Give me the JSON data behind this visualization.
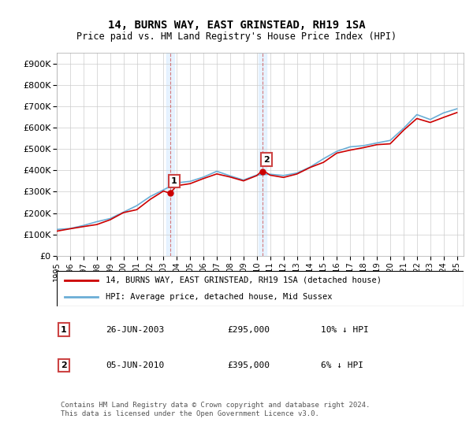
{
  "title": "14, BURNS WAY, EAST GRINSTEAD, RH19 1SA",
  "subtitle": "Price paid vs. HM Land Registry's House Price Index (HPI)",
  "legend_line1": "14, BURNS WAY, EAST GRINSTEAD, RH19 1SA (detached house)",
  "legend_line2": "HPI: Average price, detached house, Mid Sussex",
  "annotation1_label": "1",
  "annotation1_date": "26-JUN-2003",
  "annotation1_price": "£295,000",
  "annotation1_hpi": "10% ↓ HPI",
  "annotation2_label": "2",
  "annotation2_date": "05-JUN-2010",
  "annotation2_price": "£395,000",
  "annotation2_hpi": "6% ↓ HPI",
  "footnote": "Contains HM Land Registry data © Crown copyright and database right 2024.\nThis data is licensed under the Open Government Licence v3.0.",
  "sale1_year": 2003.49,
  "sale1_price": 295000,
  "sale2_year": 2010.43,
  "sale2_price": 395000,
  "hpi_color": "#6baed6",
  "price_color": "#cc0000",
  "shade_color": "#ddeeff",
  "ylim_min": 0,
  "ylim_max": 950000,
  "yticks": [
    0,
    100000,
    200000,
    300000,
    400000,
    500000,
    600000,
    700000,
    800000,
    900000
  ],
  "ytick_labels": [
    "£0",
    "£100K",
    "£200K",
    "£300K",
    "£400K",
    "£500K",
    "£600K",
    "£700K",
    "£800K",
    "£900K"
  ],
  "xmin": 1995,
  "xmax": 2025.5
}
